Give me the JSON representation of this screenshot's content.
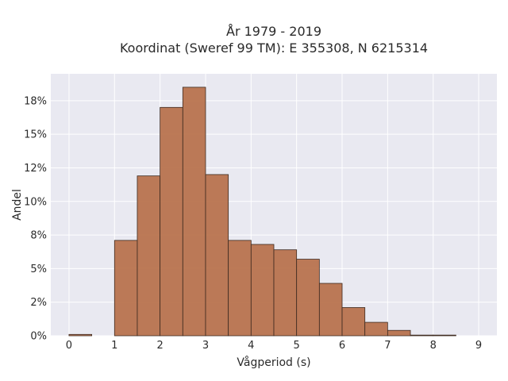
{
  "chart_data": {
    "type": "bar",
    "title_line1": "År 1979 - 2019",
    "title_line2": "Koordinat (Sweref 99 TM): E 355308, N 6215314",
    "xlabel": "Vågperiod (s)",
    "ylabel": "Andel",
    "bin_width": 0.5,
    "bins": [
      {
        "x0": 0.0,
        "value": 0.1
      },
      {
        "x0": 0.5,
        "value": 0.0
      },
      {
        "x0": 1.0,
        "value": 7.1
      },
      {
        "x0": 1.5,
        "value": 11.9
      },
      {
        "x0": 2.0,
        "value": 17.0
      },
      {
        "x0": 2.5,
        "value": 18.5
      },
      {
        "x0": 3.0,
        "value": 12.0
      },
      {
        "x0": 3.5,
        "value": 7.1
      },
      {
        "x0": 4.0,
        "value": 6.8
      },
      {
        "x0": 4.5,
        "value": 6.4
      },
      {
        "x0": 5.0,
        "value": 5.7
      },
      {
        "x0": 5.5,
        "value": 3.9
      },
      {
        "x0": 6.0,
        "value": 2.1
      },
      {
        "x0": 6.5,
        "value": 1.0
      },
      {
        "x0": 7.0,
        "value": 0.4
      },
      {
        "x0": 7.5,
        "value": 0.05
      },
      {
        "x0": 8.0,
        "value": 0.05
      }
    ],
    "xlim": [
      -0.4,
      9.4
    ],
    "ylim": [
      0,
      19.5
    ],
    "x_ticks": [
      0,
      1,
      2,
      3,
      4,
      5,
      6,
      7,
      8,
      9
    ],
    "y_ticks": [
      0,
      2.5,
      5,
      7.5,
      10,
      12.5,
      15,
      17.5
    ],
    "y_tick_labels": [
      "0%",
      "2%",
      "5%",
      "8%",
      "10%",
      "12%",
      "15%",
      "18%"
    ],
    "grid": true,
    "colors": {
      "bar_fill": "#b8734e",
      "bar_edge": "#3d2a20",
      "plot_bg": "#e9e9f1",
      "grid": "#ffffff"
    }
  }
}
